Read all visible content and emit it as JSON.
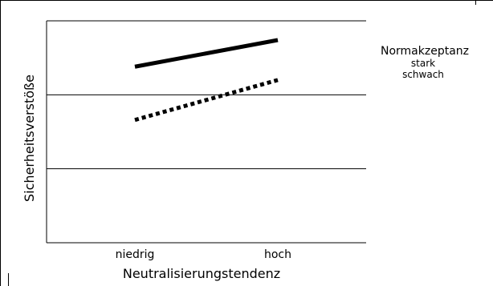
{
  "chart_data": {
    "type": "line",
    "categories": [
      "niedrig",
      "hoch"
    ],
    "xlabel": "Neutralisierungstendenz",
    "ylabel": "Sicherheitsverstöße",
    "ylim": [
      0,
      3
    ],
    "grid": true,
    "legend": {
      "title": "Normakzeptanz",
      "placement": "right",
      "entries": [
        "stark",
        "schwach"
      ]
    },
    "series": [
      {
        "name": "stark",
        "values": [
          2.38,
          2.74
        ],
        "style": "solid",
        "color": "#000000"
      },
      {
        "name": "schwach",
        "values": [
          1.66,
          2.2
        ],
        "style": "dotted",
        "color": "#000000"
      }
    ]
  }
}
